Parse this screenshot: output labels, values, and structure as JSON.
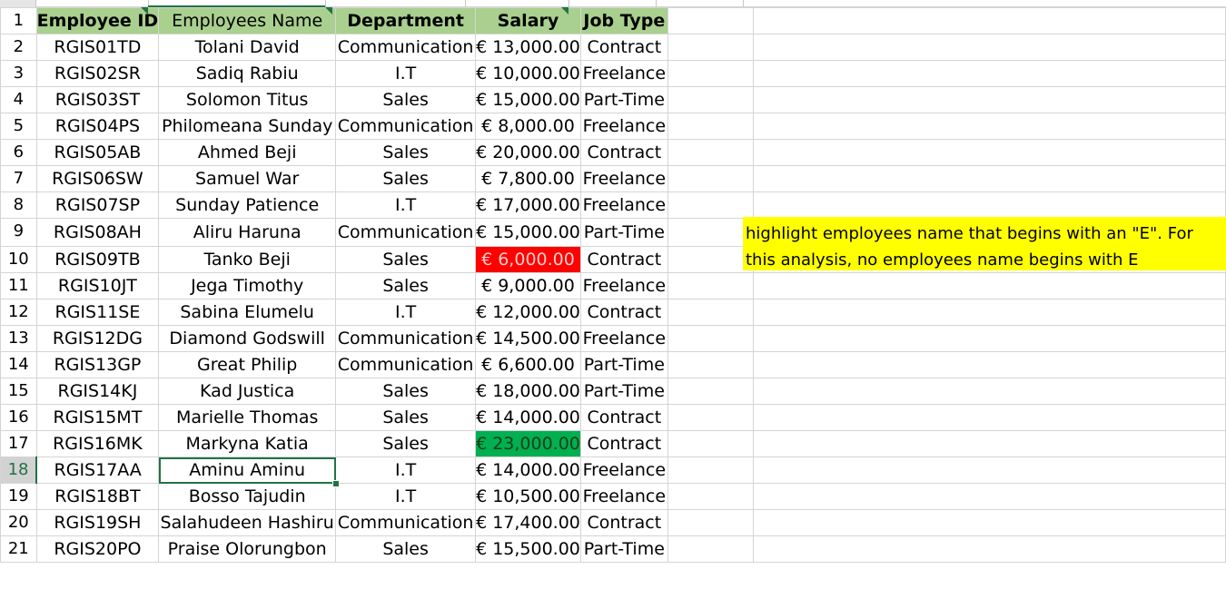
{
  "sheet": {
    "headers": [
      "Employee ID",
      "Employees Name",
      "Department",
      "Salary",
      "Job Type"
    ],
    "rows": [
      {
        "n": "2",
        "id": "RGIS01TD",
        "name": "Tolani David",
        "dept": "Communication",
        "salary": "€ 13,000.00",
        "job": "Contract"
      },
      {
        "n": "3",
        "id": "RGIS02SR",
        "name": "Sadiq Rabiu",
        "dept": "I.T",
        "salary": "€ 10,000.00",
        "job": "Freelance"
      },
      {
        "n": "4",
        "id": "RGIS03ST",
        "name": "Solomon Titus",
        "dept": "Sales",
        "salary": "€ 15,000.00",
        "job": "Part-Time"
      },
      {
        "n": "5",
        "id": "RGIS04PS",
        "name": "Philomeana Sunday",
        "dept": "Communication",
        "salary": "€ 8,000.00",
        "job": "Freelance"
      },
      {
        "n": "6",
        "id": "RGIS05AB",
        "name": "Ahmed Beji",
        "dept": "Sales",
        "salary": "€ 20,000.00",
        "job": "Contract"
      },
      {
        "n": "7",
        "id": "RGIS06SW",
        "name": "Samuel War",
        "dept": "Sales",
        "salary": "€ 7,800.00",
        "job": "Freelance"
      },
      {
        "n": "8",
        "id": "RGIS07SP",
        "name": "Sunday Patience",
        "dept": "I.T",
        "salary": "€ 17,000.00",
        "job": "Freelance"
      },
      {
        "n": "9",
        "id": "RGIS08AH",
        "name": "Aliru Haruna",
        "dept": "Communication",
        "salary": "€ 15,000.00",
        "job": "Part-Time"
      },
      {
        "n": "10",
        "id": "RGIS09TB",
        "name": "Tanko Beji",
        "dept": "Sales",
        "salary": "€ 6,000.00",
        "job": "Contract"
      },
      {
        "n": "11",
        "id": "RGIS10JT",
        "name": "Jega Timothy",
        "dept": "Sales",
        "salary": "€ 9,000.00",
        "job": "Freelance"
      },
      {
        "n": "12",
        "id": "RGIS11SE",
        "name": "Sabina Elumelu",
        "dept": "I.T",
        "salary": "€ 12,000.00",
        "job": "Contract"
      },
      {
        "n": "13",
        "id": "RGIS12DG",
        "name": "Diamond Godswill",
        "dept": "Communication",
        "salary": "€ 14,500.00",
        "job": "Freelance"
      },
      {
        "n": "14",
        "id": "RGIS13GP",
        "name": "Great Philip",
        "dept": "Communication",
        "salary": "€ 6,600.00",
        "job": "Part-Time"
      },
      {
        "n": "15",
        "id": "RGIS14KJ",
        "name": "Kad Justica",
        "dept": "Sales",
        "salary": "€ 18,000.00",
        "job": "Part-Time"
      },
      {
        "n": "16",
        "id": "RGIS15MT",
        "name": "Marielle Thomas",
        "dept": "Sales",
        "salary": "€ 14,000.00",
        "job": "Contract"
      },
      {
        "n": "17",
        "id": "RGIS16MK",
        "name": "Markyna Katia",
        "dept": "Sales",
        "salary": "€ 23,000.00",
        "job": "Contract"
      },
      {
        "n": "18",
        "id": "RGIS17AA",
        "name": "Aminu Aminu",
        "dept": "I.T",
        "salary": "€ 14,000.00",
        "job": "Freelance"
      },
      {
        "n": "19",
        "id": "RGIS18BT",
        "name": "Bosso Tajudin",
        "dept": "I.T",
        "salary": "€ 10,500.00",
        "job": "Freelance"
      },
      {
        "n": "20",
        "id": "RGIS19SH",
        "name": "Salahudeen Hashiru",
        "dept": "Communication",
        "salary": "€ 17,400.00",
        "job": "Contract"
      },
      {
        "n": "21",
        "id": "RGIS20PO",
        "name": "Praise Olorungbon",
        "dept": "Sales",
        "salary": "€ 15,500.00",
        "job": "Part-Time"
      }
    ],
    "note": "highlight employees name that begins with an \"E\". For this analysis, no employees name begins with E",
    "colors": {
      "header_fill": "#a9d08e",
      "low_salary": "#ff0000",
      "high_salary": "#00b050",
      "note_fill": "#ffff00",
      "selection": "#217346"
    }
  }
}
